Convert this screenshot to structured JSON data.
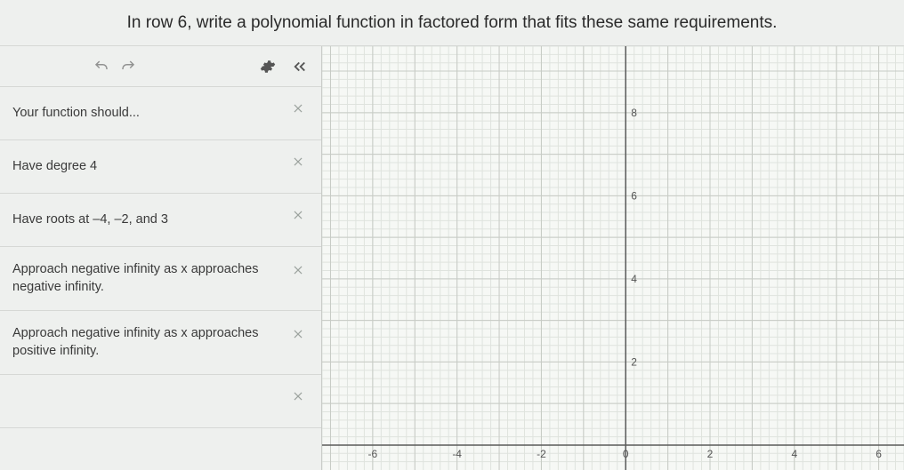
{
  "header": {
    "prompt": "In row 6, write a polynomial function in factored form that fits these same requirements."
  },
  "sidebar": {
    "rows": [
      {
        "text": "Your function should..."
      },
      {
        "text": "Have degree 4"
      },
      {
        "text": "Have roots at –4, –2, and 3"
      },
      {
        "text": "Approach negative infinity as x approaches negative infinity."
      },
      {
        "text": "Approach negative infinity as x approaches positive infinity."
      },
      {
        "text": ""
      }
    ]
  },
  "graph": {
    "type": "cartesian-grid",
    "background_color": "#f6f8f5",
    "grid_minor_color": "#dfe3de",
    "grid_major_color": "#c7cbc5",
    "axis_color": "#5a5a5a",
    "x": {
      "min": -7.2,
      "max": 6.6,
      "minor_step": 0.2,
      "major_step": 1,
      "label_step": 2,
      "visible_labels": [
        -6,
        -4,
        -2,
        0,
        2,
        4,
        6
      ]
    },
    "y": {
      "min": -0.6,
      "max": 9.6,
      "minor_step": 0.2,
      "major_step": 1,
      "label_step": 2,
      "visible_labels": [
        2,
        4,
        6,
        8
      ]
    },
    "tick_label_fontsize": 12,
    "tick_label_color": "#555555"
  }
}
